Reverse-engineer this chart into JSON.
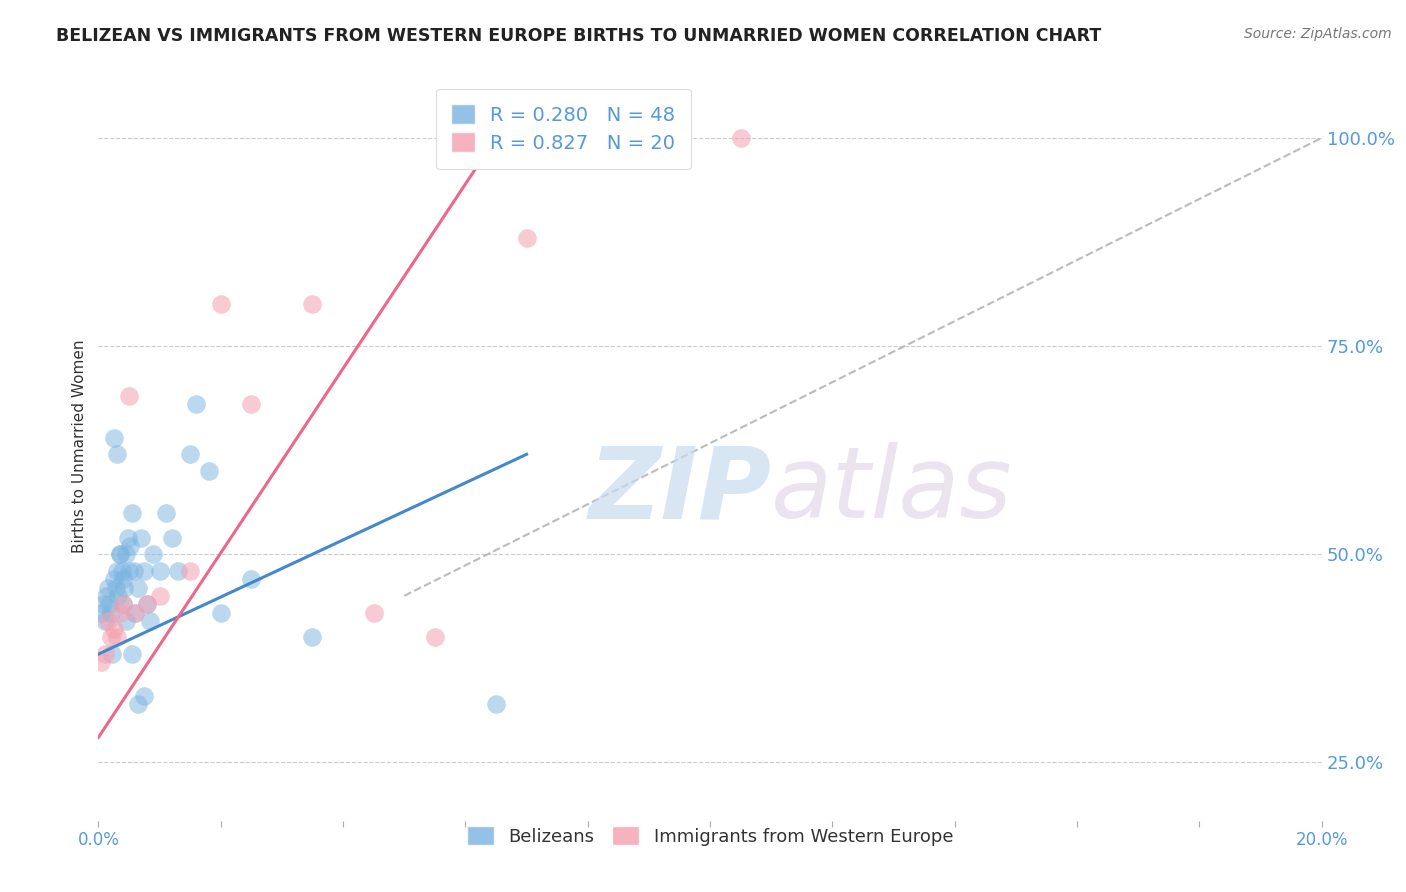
{
  "title": "BELIZEAN VS IMMIGRANTS FROM WESTERN EUROPE BIRTHS TO UNMARRIED WOMEN CORRELATION CHART",
  "source": "Source: ZipAtlas.com",
  "ylabel": "Births to Unmarried Women",
  "x_bottom_ticks": [
    "0.0%",
    "",
    "",
    "",
    "",
    "",
    "",
    "",
    "",
    "",
    "20.0%"
  ],
  "x_bottom_values": [
    0.0,
    2.0,
    4.0,
    6.0,
    8.0,
    10.0,
    12.0,
    14.0,
    16.0,
    18.0,
    20.0
  ],
  "y_ticks_right": [
    "100.0%",
    "75.0%",
    "50.0%",
    "25.0%"
  ],
  "y_tick_values": [
    100.0,
    75.0,
    50.0,
    25.0
  ],
  "background_color": "#ffffff",
  "grid_color": "#cccccc",
  "watermark_zip": "ZIP",
  "watermark_atlas": "atlas",
  "blue_color": "#7ab3e0",
  "pink_color": "#f4a0b0",
  "blue_line_color": "#4488cc",
  "pink_line_color": "#ee6688",
  "blue_label": "Belizeans",
  "pink_label": "Immigrants from Western Europe",
  "R_blue": 0.28,
  "N_blue": 48,
  "R_pink": 0.827,
  "N_pink": 20,
  "tick_label_color": "#5599dd",
  "blue_scatter_x": [
    0.05,
    0.08,
    0.1,
    0.12,
    0.15,
    0.18,
    0.2,
    0.22,
    0.25,
    0.28,
    0.3,
    0.32,
    0.35,
    0.38,
    0.4,
    0.42,
    0.45,
    0.48,
    0.5,
    0.52,
    0.55,
    0.58,
    0.6,
    0.65,
    0.7,
    0.75,
    0.8,
    0.85,
    0.9,
    1.0,
    1.1,
    1.2,
    1.3,
    1.5,
    1.8,
    2.0,
    2.5,
    0.25,
    0.3,
    0.35,
    0.4,
    0.45,
    0.55,
    0.65,
    0.75,
    1.6,
    3.5,
    6.5
  ],
  "blue_scatter_y": [
    43,
    44,
    42,
    45,
    46,
    44,
    43,
    38,
    47,
    46,
    48,
    45,
    50,
    48,
    44,
    46,
    50,
    52,
    48,
    51,
    55,
    48,
    43,
    46,
    52,
    48,
    44,
    42,
    50,
    48,
    55,
    52,
    48,
    62,
    60,
    43,
    47,
    64,
    62,
    50,
    47,
    42,
    38,
    32,
    33,
    68,
    40,
    32
  ],
  "pink_scatter_x": [
    0.05,
    0.1,
    0.15,
    0.2,
    0.25,
    0.3,
    0.35,
    0.4,
    0.5,
    0.6,
    0.8,
    1.0,
    1.5,
    2.0,
    2.5,
    3.5,
    4.5,
    5.5,
    7.0,
    10.5
  ],
  "pink_scatter_y": [
    37,
    38,
    42,
    40,
    41,
    40,
    43,
    44,
    69,
    43,
    44,
    45,
    48,
    80,
    68,
    80,
    43,
    40,
    88,
    100
  ],
  "blue_line_x": [
    0.0,
    7.0
  ],
  "blue_line_y": [
    38.0,
    62.0
  ],
  "pink_line_x": [
    0.0,
    6.5
  ],
  "pink_line_y": [
    28.0,
    100.0
  ],
  "ref_line_x": [
    5.0,
    20.0
  ],
  "ref_line_y": [
    45.0,
    100.0
  ],
  "xmin": 0.0,
  "xmax": 20.0,
  "ymin": 18.0,
  "ymax": 108.0
}
